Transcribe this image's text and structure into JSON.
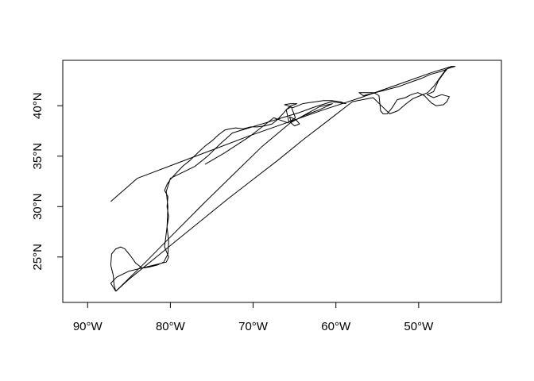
{
  "chart_data": {
    "type": "line",
    "title": "",
    "xlabel": "",
    "ylabel": "",
    "xlim": [
      -93,
      -40
    ],
    "ylim": [
      20.5,
      44.5
    ],
    "x_ticks": [
      {
        "value": -90,
        "label": "90°W"
      },
      {
        "value": -80,
        "label": "80°W"
      },
      {
        "value": -70,
        "label": "70°W"
      },
      {
        "value": -60,
        "label": "60°W"
      },
      {
        "value": -50,
        "label": "50°W"
      }
    ],
    "y_ticks": [
      {
        "value": 25,
        "label": "25°N"
      },
      {
        "value": 30,
        "label": "30°N"
      },
      {
        "value": 35,
        "label": "35°N"
      },
      {
        "value": 40,
        "label": "40°N"
      }
    ],
    "grid": false,
    "series": [
      {
        "x": [
          -86.6,
          -86.8,
          -86.9,
          -87.2,
          -87.1,
          -86.6,
          -86.0,
          -85.5,
          -84.8,
          -84.2,
          -83.4,
          -82.6,
          -81.6,
          -80.8,
          -80.3,
          -80.2,
          -80.4,
          -80.2,
          -80.4,
          -80.3,
          -80.7,
          -80.4,
          -80.0,
          -79.2,
          -78.5,
          -77.6,
          -76.6,
          -75.8,
          -75.0,
          -74.2,
          -73.4,
          -72.8,
          -72.1,
          -71.2,
          -70.3,
          -69.5,
          -68.6,
          -67.7,
          -67.1,
          -66.4,
          -66.0,
          -65.5,
          -65.0,
          -64.7,
          -65.5,
          -66.2,
          -65.8,
          -65.2,
          -64.6,
          -64.0,
          -63.3,
          -62.4,
          -61.5,
          -60.5,
          -59.5,
          -58.8,
          -60.5,
          -62.5,
          -64.5,
          -66.5,
          -68.5,
          -70.5,
          -72.5,
          -74.0,
          -75.5,
          -77.0,
          -78.5,
          -80.0,
          -80.5,
          -80.3,
          -80.4,
          -80.7,
          -80.2,
          -80.5,
          -82.0,
          -83.5,
          -85.0,
          -86.5,
          -87.2,
          -86.6
        ],
        "y": [
          21.6,
          22.2,
          23.2,
          24.2,
          25.3,
          25.8,
          26.0,
          25.8,
          25.1,
          24.4,
          23.9,
          24.0,
          24.2,
          24.5,
          25.3,
          26.5,
          28.0,
          29.0,
          30.0,
          31.0,
          31.6,
          32.2,
          32.7,
          33.4,
          34.0,
          34.6,
          35.4,
          36.0,
          36.5,
          37.1,
          37.6,
          37.7,
          37.8,
          37.7,
          37.9,
          37.9,
          38.0,
          38.2,
          38.6,
          39.2,
          39.6,
          40.0,
          40.1,
          40.2,
          40.2,
          40.1,
          40.0,
          39.8,
          40.0,
          40.2,
          40.3,
          40.4,
          40.5,
          40.5,
          40.4,
          40.2,
          40.4,
          39.9,
          39.3,
          38.8,
          38.3,
          37.8,
          37.3,
          36.2,
          35.0,
          34.0,
          33.4,
          32.8,
          31.5,
          30.0,
          28.0,
          26.0,
          25.0,
          24.5,
          24.2,
          23.9,
          23.6,
          23.0,
          22.4,
          21.6
        ]
      },
      {
        "x": [
          -86.6,
          -85.0,
          -82.0,
          -79.0,
          -76.0,
          -73.0,
          -70.0,
          -67.0,
          -64.0,
          -61.0,
          -58.0,
          -55.5,
          -54.5,
          -53.5,
          -52.5,
          -51.5,
          -50.7,
          -49.8,
          -48.9,
          -48.1,
          -47.4,
          -46.8,
          -46.1,
          -45.6,
          -46.4,
          -47.3,
          -48.6,
          -49.7,
          -51.1,
          -52.4,
          -53.8,
          -55.2,
          -56.7,
          -57.2,
          -55.4,
          -54.8,
          -54.7,
          -54.6,
          -54.3,
          -53.8,
          -53.2,
          -52.6,
          -51.6,
          -50.9,
          -50.1,
          -49.3,
          -48.5,
          -47.9,
          -47.0,
          -46.6,
          -46.3,
          -47.2,
          -48.2,
          -49.0,
          -48.2,
          -47.6,
          -46.9,
          -46.4,
          -46.0,
          -48.4,
          -52.5,
          -57.0,
          -61.5,
          -66.0,
          -70.5,
          -75.0,
          -79.5,
          -84.0,
          -87.2
        ],
        "y": [
          21.6,
          22.8,
          24.8,
          26.8,
          28.8,
          30.8,
          32.7,
          34.6,
          36.6,
          38.5,
          40.4,
          40.8,
          40.0,
          39.2,
          39.5,
          40.2,
          40.7,
          41.0,
          41.3,
          42.0,
          42.8,
          43.5,
          43.9,
          43.9,
          43.7,
          43.4,
          43.1,
          42.7,
          42.3,
          41.9,
          41.6,
          41.3,
          41.0,
          41.3,
          41.3,
          41.0,
          40.3,
          39.5,
          39.2,
          39.2,
          39.8,
          40.6,
          40.8,
          41.1,
          41.3,
          41.0,
          40.3,
          40.0,
          40.1,
          40.4,
          40.9,
          41.1,
          40.8,
          41.1,
          41.4,
          42.5,
          43.3,
          43.8,
          43.9,
          43.3,
          42.1,
          40.8,
          39.6,
          38.3,
          37.0,
          35.6,
          34.2,
          32.8,
          30.5
        ]
      },
      {
        "x": [
          -86.6,
          -83.0,
          -79.5,
          -76.0,
          -72.5,
          -69.0,
          -65.5,
          -62.0,
          -60.4,
          -62.0,
          -63.6,
          -65.4,
          -65.6,
          -64.8,
          -64.4,
          -65.0,
          -65.7,
          -66.0,
          -65.4,
          -64.9,
          -65.8,
          -67.5,
          -70.5,
          -73.5,
          -75.8
        ],
        "y": [
          21.6,
          24.5,
          27.4,
          30.3,
          33.1,
          35.9,
          38.3,
          39.9,
          40.2,
          39.6,
          39.1,
          38.4,
          38.9,
          38.6,
          38.2,
          38.0,
          38.5,
          39.6,
          39.9,
          38.8,
          38.3,
          38.8,
          36.9,
          35.3,
          34.2
        ]
      }
    ]
  }
}
